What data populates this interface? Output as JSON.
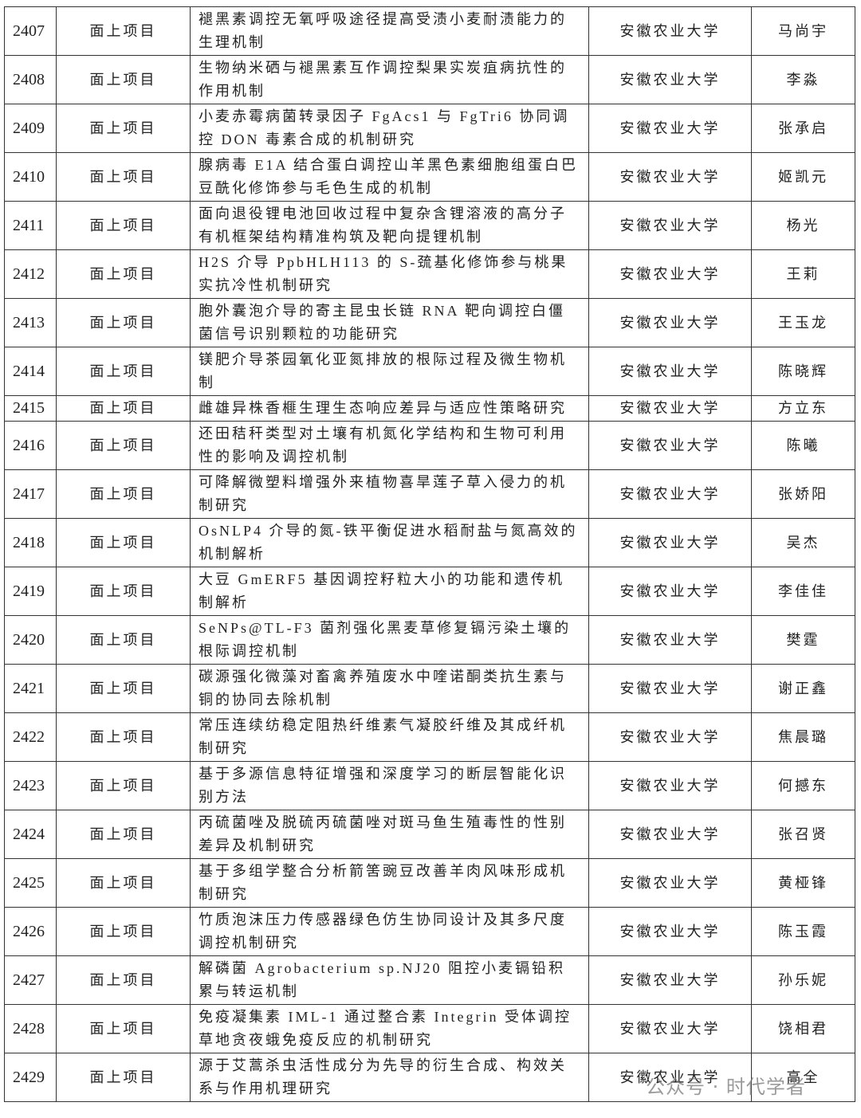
{
  "table": {
    "rows": [
      [
        "2407",
        "面上项目",
        "褪黑素调控无氧呼吸途径提高受渍小麦耐渍能力的生理机制",
        "安徽农业大学",
        "马尚宇"
      ],
      [
        "2408",
        "面上项目",
        "生物纳米硒与褪黑素互作调控梨果实炭疽病抗性的作用机制",
        "安徽农业大学",
        "李淼"
      ],
      [
        "2409",
        "面上项目",
        "小麦赤霉病菌转录因子 FgAcs1 与 FgTri6 协同调控 DON 毒素合成的机制研究",
        "安徽农业大学",
        "张承启"
      ],
      [
        "2410",
        "面上项目",
        "腺病毒 E1A 结合蛋白调控山羊黑色素细胞组蛋白巴豆酰化修饰参与毛色生成的机制",
        "安徽农业大学",
        "姬凯元"
      ],
      [
        "2411",
        "面上项目",
        "面向退役锂电池回收过程中复杂含锂溶液的高分子有机框架结构精准构筑及靶向提锂机制",
        "安徽农业大学",
        "杨光"
      ],
      [
        "2412",
        "面上项目",
        "H2S 介导 PpbHLH113 的 S-巯基化修饰参与桃果实抗冷性机制研究",
        "安徽农业大学",
        "王莉"
      ],
      [
        "2413",
        "面上项目",
        "胞外囊泡介导的寄主昆虫长链 RNA 靶向调控白僵菌信号识别颗粒的功能研究",
        "安徽农业大学",
        "王玉龙"
      ],
      [
        "2414",
        "面上项目",
        "镁肥介导茶园氧化亚氮排放的根际过程及微生物机制",
        "安徽农业大学",
        "陈晓辉"
      ],
      [
        "2415",
        "面上项目",
        "雌雄异株香榧生理生态响应差异与适应性策略研究",
        "安徽农业大学",
        "方立东"
      ],
      [
        "2416",
        "面上项目",
        "还田秸秆类型对土壤有机氮化学结构和生物可利用性的影响及调控机制",
        "安徽农业大学",
        "陈曦"
      ],
      [
        "2417",
        "面上项目",
        "可降解微塑料增强外来植物喜旱莲子草入侵力的机制研究",
        "安徽农业大学",
        "张娇阳"
      ],
      [
        "2418",
        "面上项目",
        "OsNLP4 介导的氮-铁平衡促进水稻耐盐与氮高效的机制解析",
        "安徽农业大学",
        "吴杰"
      ],
      [
        "2419",
        "面上项目",
        "大豆 GmERF5 基因调控籽粒大小的功能和遗传机制解析",
        "安徽农业大学",
        "李佳佳"
      ],
      [
        "2420",
        "面上项目",
        "SeNPs@TL-F3 菌剂强化黑麦草修复镉污染土壤的根际调控机制",
        "安徽农业大学",
        "樊霆"
      ],
      [
        "2421",
        "面上项目",
        "碳源强化微藻对畜禽养殖废水中喹诺酮类抗生素与铜的协同去除机制",
        "安徽农业大学",
        "谢正鑫"
      ],
      [
        "2422",
        "面上项目",
        "常压连续纺稳定阻热纤维素气凝胶纤维及其成纤机制研究",
        "安徽农业大学",
        "焦晨璐"
      ],
      [
        "2423",
        "面上项目",
        "基于多源信息特征增强和深度学习的断层智能化识别方法",
        "安徽农业大学",
        "何撼东"
      ],
      [
        "2424",
        "面上项目",
        "丙硫菌唑及脱硫丙硫菌唑对斑马鱼生殖毒性的性别差异及机制研究",
        "安徽农业大学",
        "张召贤"
      ],
      [
        "2425",
        "面上项目",
        "基于多组学整合分析箭筈豌豆改善羊肉风味形成机制研究",
        "安徽农业大学",
        "黄桠锋"
      ],
      [
        "2426",
        "面上项目",
        "竹质泡沫压力传感器绿色仿生协同设计及其多尺度调控机制研究",
        "安徽农业大学",
        "陈玉霞"
      ],
      [
        "2427",
        "面上项目",
        "解磷菌 Agrobacterium sp.NJ20 阻控小麦镉铅积累与转运机制",
        "安徽农业大学",
        "孙乐妮"
      ],
      [
        "2428",
        "面上项目",
        "免疫凝集素 IML-1 通过整合素 Integrin 受体调控草地贪夜蛾免疫反应的机制研究",
        "安徽农业大学",
        "饶相君"
      ],
      [
        "2429",
        "面上项目",
        "源于艾蒿杀虫活性成分为先导的衍生合成、构效关系与作用机理研究",
        "安徽农业大学",
        "高全"
      ]
    ]
  },
  "watermark": "公众号 · 时代学者"
}
